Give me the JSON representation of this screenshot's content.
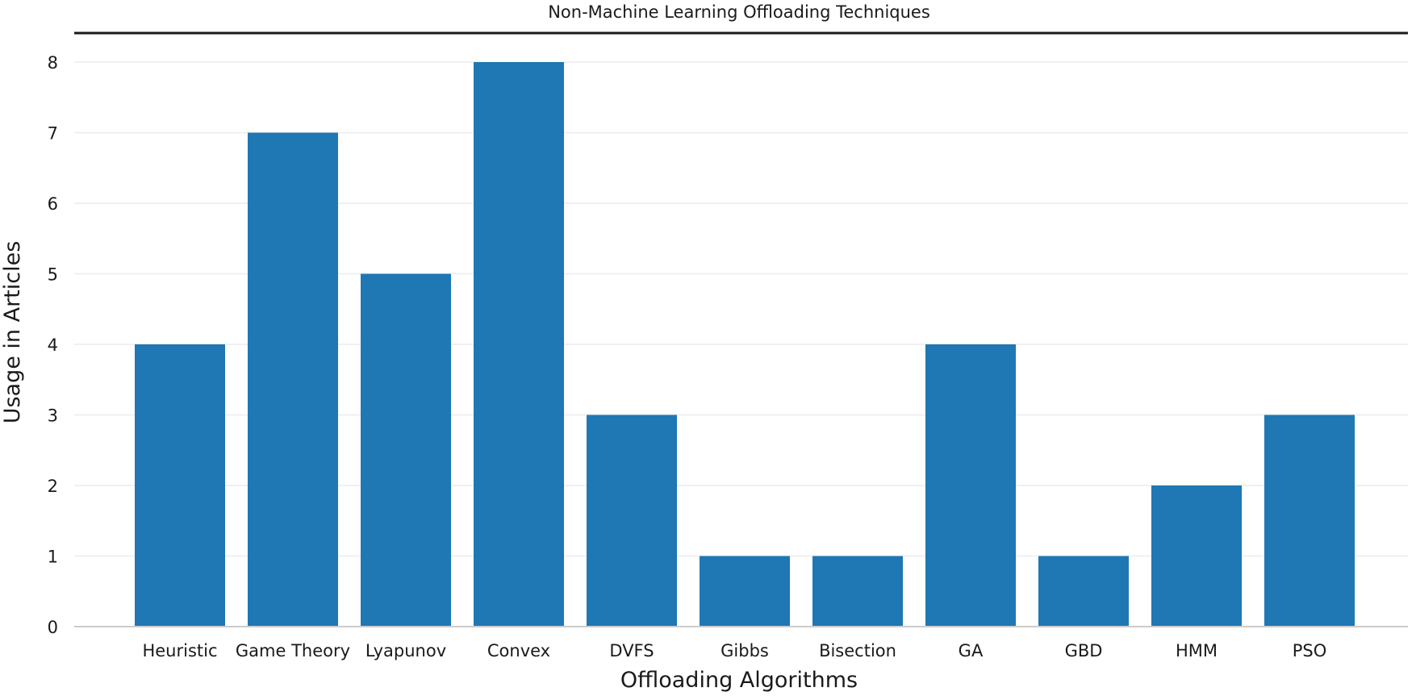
{
  "chart_data": {
    "type": "bar",
    "title": "Non-Machine Learning Offloading Techniques",
    "xlabel": "Offloading Algorithms",
    "ylabel": "Usage in Articles",
    "categories": [
      "Heuristic",
      "Game Theory",
      "Lyapunov",
      "Convex",
      "DVFS",
      "Gibbs",
      "Bisection",
      "GA",
      "GBD",
      "HMM",
      "PSO"
    ],
    "values": [
      4,
      7,
      5,
      8,
      3,
      1,
      1,
      4,
      1,
      2,
      3
    ],
    "ylim": [
      0,
      8
    ],
    "yticks": [
      "0",
      "1",
      "2",
      "3",
      "4",
      "5",
      "6",
      "7",
      "8"
    ],
    "grid": true,
    "bar_color": "#1f77b4",
    "grid_color": "#ececec",
    "axis_color": "#cccccc"
  }
}
